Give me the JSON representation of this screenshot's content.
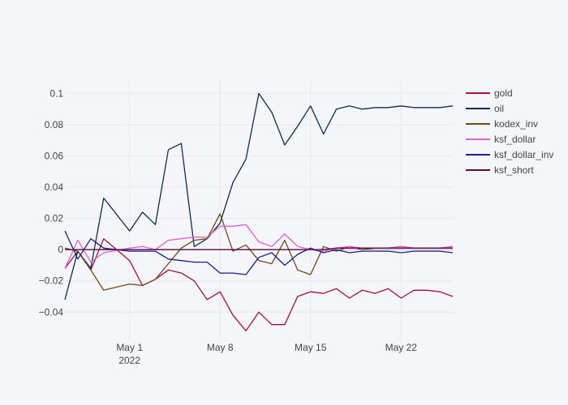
{
  "chart_data": {
    "type": "line",
    "title": "",
    "xlabel": "",
    "ylabel": "",
    "x_range": [
      "2022-04-26",
      "2022-05-26"
    ],
    "ylim": [
      -0.058,
      0.108
    ],
    "grid": true,
    "legend_position": "right",
    "x_ticks": [
      {
        "date": "2022-05-01",
        "label": "May 1",
        "sublabel": "2022"
      },
      {
        "date": "2022-05-08",
        "label": "May 8",
        "sublabel": ""
      },
      {
        "date": "2022-05-15",
        "label": "May 15",
        "sublabel": ""
      },
      {
        "date": "2022-05-22",
        "label": "May 22",
        "sublabel": ""
      }
    ],
    "y_ticks": [
      {
        "value": 0.1,
        "label": "0.1"
      },
      {
        "value": 0.08,
        "label": "0.08"
      },
      {
        "value": 0.06,
        "label": "0.06"
      },
      {
        "value": 0.04,
        "label": "0.04"
      },
      {
        "value": 0.02,
        "label": "0.02"
      },
      {
        "value": 0,
        "label": "0"
      },
      {
        "value": -0.02,
        "label": "−0.02"
      },
      {
        "value": -0.04,
        "label": "−0.04"
      }
    ],
    "x": [
      "2022-04-26",
      "2022-04-27",
      "2022-04-28",
      "2022-04-29",
      "2022-05-01",
      "2022-05-02",
      "2022-05-03",
      "2022-05-04",
      "2022-05-05",
      "2022-05-06",
      "2022-05-07",
      "2022-05-08",
      "2022-05-09",
      "2022-05-10",
      "2022-05-11",
      "2022-05-12",
      "2022-05-13",
      "2022-05-14",
      "2022-05-15",
      "2022-05-16",
      "2022-05-17",
      "2022-05-18",
      "2022-05-19",
      "2022-05-20",
      "2022-05-21",
      "2022-05-22",
      "2022-05-23",
      "2022-05-24",
      "2022-05-25",
      "2022-05-26"
    ],
    "series": [
      {
        "name": "gold",
        "color": "#a50f3c",
        "values": [
          -0.012,
          -0.001,
          -0.013,
          0.007,
          -0.007,
          -0.023,
          -0.019,
          -0.013,
          -0.015,
          -0.02,
          -0.032,
          -0.027,
          -0.042,
          -0.052,
          -0.04,
          -0.048,
          -0.048,
          -0.03,
          -0.027,
          -0.028,
          -0.025,
          -0.031,
          -0.026,
          -0.028,
          -0.025,
          -0.031,
          -0.026,
          -0.026,
          -0.027,
          -0.03
        ]
      },
      {
        "name": "oil",
        "color": "#0e2a58",
        "values": [
          -0.032,
          -0.001,
          -0.012,
          0.033,
          0.012,
          0.024,
          0.016,
          0.064,
          0.068,
          0.002,
          0.007,
          0.017,
          0.043,
          0.058,
          0.1,
          0.088,
          0.067,
          0.079,
          0.092,
          0.074,
          0.09,
          0.092,
          0.09,
          0.091,
          0.091,
          0.092,
          0.091,
          0.091,
          0.091,
          0.092
        ]
      },
      {
        "name": "kodex_inv",
        "color": "#6b4a1a",
        "values": [
          0.001,
          -0.001,
          -0.013,
          -0.026,
          -0.022,
          -0.023,
          -0.019,
          -0.009,
          0.001,
          0.006,
          0.007,
          0.023,
          -0.001,
          0.003,
          -0.007,
          -0.009,
          0.006,
          -0.013,
          -0.016,
          0.002,
          -0.001,
          0.002,
          0.0,
          0.001,
          0.001,
          0.002,
          0.001,
          0.001,
          0.001,
          0.002
        ]
      },
      {
        "name": "ksf_dollar",
        "color": "#e05fd0",
        "values": [
          -0.012,
          0.006,
          -0.008,
          -0.002,
          0.001,
          0.002,
          0.0,
          0.006,
          0.007,
          0.008,
          0.008,
          0.015,
          0.015,
          0.016,
          0.005,
          0.002,
          0.01,
          0.002,
          0.0,
          -0.001,
          0.001,
          0.002,
          0.001,
          0.001,
          0.001,
          0.002,
          0.001,
          0.001,
          0.001,
          0.002
        ]
      },
      {
        "name": "ksf_dollar_inv",
        "color": "#1b1f8a",
        "values": [
          0.012,
          -0.006,
          0.007,
          0.001,
          -0.001,
          -0.001,
          -0.001,
          -0.006,
          -0.007,
          -0.008,
          -0.008,
          -0.015,
          -0.015,
          -0.016,
          -0.005,
          -0.002,
          -0.01,
          -0.003,
          0.001,
          -0.002,
          0.0,
          -0.002,
          -0.001,
          -0.001,
          -0.001,
          -0.002,
          -0.001,
          -0.001,
          -0.001,
          -0.002
        ]
      },
      {
        "name": "ksf_short",
        "color": "#5c0a3f",
        "values": [
          0.0,
          0.0,
          0.0,
          0.0,
          0.0,
          0.0,
          0.0,
          0.0,
          0.0,
          0.0,
          0.0,
          0.0,
          0.0,
          0.0,
          0.0,
          0.0,
          0.0,
          0.0,
          0.0,
          0.0,
          0.001,
          0.001,
          0.001,
          0.001,
          0.001,
          0.001,
          0.001,
          0.001,
          0.001,
          0.001
        ]
      }
    ]
  }
}
